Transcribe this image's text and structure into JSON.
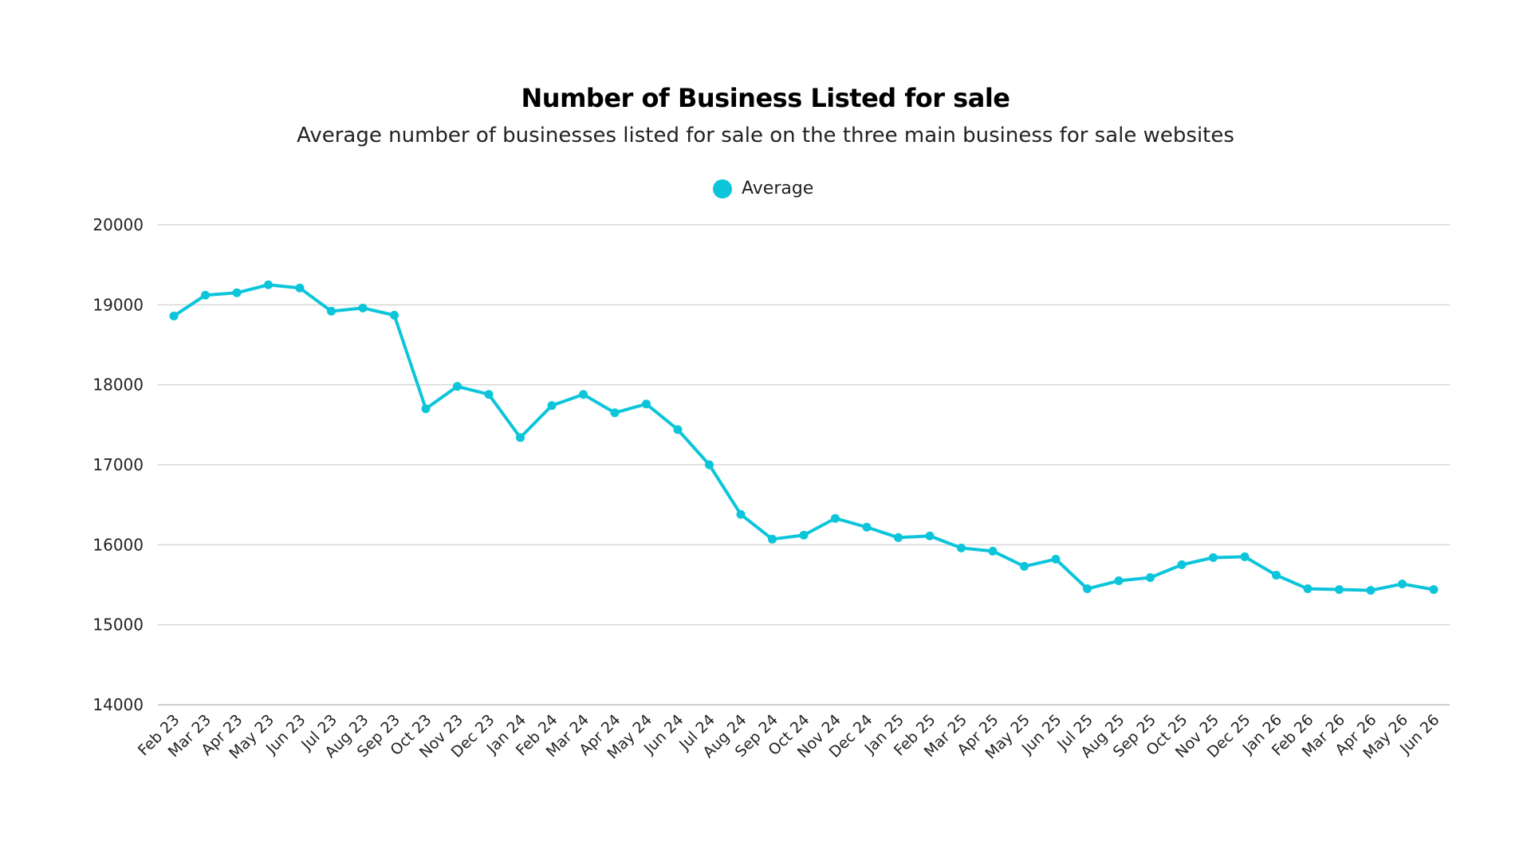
{
  "chart_data": {
    "type": "line",
    "title": "Number of Business Listed for sale",
    "subtitle": "Average number of businesses listed for sale on the three main business for sale websites",
    "xlabel": "",
    "ylabel": "",
    "ylim": [
      14000,
      20000
    ],
    "yticks": [
      "20000",
      "19000",
      "18000",
      "17000",
      "16000",
      "15000",
      "14000"
    ],
    "grid": true,
    "legend_position": "top-center",
    "categories": [
      "Feb 23",
      "Mar 23",
      "Apr 23",
      "May 23",
      "Jun 23",
      "Jul 23",
      "Aug 23",
      "Sep 23",
      "Oct 23",
      "Nov 23",
      "Dec 23",
      "Jan 24",
      "Feb 24",
      "Mar 24",
      "Apr 24",
      "May 24",
      "Jun 24",
      "Jul 24",
      "Aug 24",
      "Sep 24",
      "Oct 24",
      "Nov 24",
      "Dec 24",
      "Jan 25",
      "Feb 25",
      "Mar 25",
      "Apr 25",
      "May 25",
      "Jun 25",
      "Jul 25",
      "Aug 25",
      "Sep 25",
      "Oct 25",
      "Nov 25",
      "Dec 25",
      "Jan 26",
      "Feb 26",
      "Mar 26",
      "Apr 26",
      "May 26",
      "Jun 26"
    ],
    "series": [
      {
        "name": "Average",
        "color": "#0cc5da",
        "values": [
          18860,
          19120,
          19150,
          19250,
          19210,
          18920,
          18960,
          18870,
          17700,
          17980,
          17880,
          17340,
          17740,
          17880,
          17650,
          17760,
          17440,
          17000,
          16380,
          16070,
          16120,
          16330,
          16220,
          16090,
          16110,
          15960,
          15920,
          15730,
          15820,
          15450,
          15550,
          15590,
          15750,
          15840,
          15850,
          15620,
          15450,
          15440,
          15430,
          15510,
          15440
        ]
      }
    ]
  }
}
